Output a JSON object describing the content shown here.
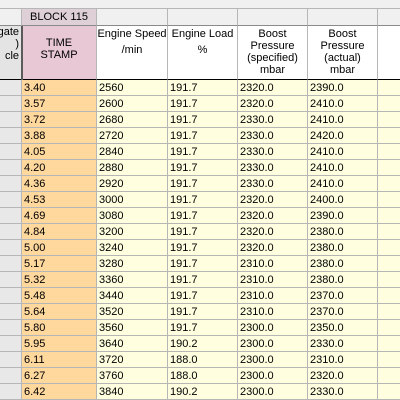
{
  "block_label": "BLOCK 115",
  "left_header": [
    "gate",
    ")",
    "cle"
  ],
  "columns": [
    {
      "lines": [
        "TIME",
        "STAMP"
      ]
    },
    {
      "lines": [
        "Engine Speed",
        "",
        "/min"
      ]
    },
    {
      "lines": [
        "Engine Load",
        "",
        "%"
      ]
    },
    {
      "lines": [
        "Boost",
        "Pressure",
        "(specified)",
        "mbar"
      ]
    },
    {
      "lines": [
        "Boost",
        "Pressure",
        "(actual)",
        "mbar"
      ]
    }
  ],
  "rows": [
    [
      "3.40",
      "2560",
      "191.7",
      "2320.0",
      "2390.0"
    ],
    [
      "3.57",
      "2600",
      "191.7",
      "2320.0",
      "2410.0"
    ],
    [
      "3.72",
      "2680",
      "191.7",
      "2330.0",
      "2410.0"
    ],
    [
      "3.88",
      "2720",
      "191.7",
      "2330.0",
      "2420.0"
    ],
    [
      "4.05",
      "2840",
      "191.7",
      "2330.0",
      "2410.0"
    ],
    [
      "4.20",
      "2880",
      "191.7",
      "2330.0",
      "2410.0"
    ],
    [
      "4.36",
      "2920",
      "191.7",
      "2330.0",
      "2410.0"
    ],
    [
      "4.53",
      "3000",
      "191.7",
      "2320.0",
      "2400.0"
    ],
    [
      "4.69",
      "3080",
      "191.7",
      "2320.0",
      "2390.0"
    ],
    [
      "4.84",
      "3200",
      "191.7",
      "2320.0",
      "2380.0"
    ],
    [
      "5.00",
      "3240",
      "191.7",
      "2320.0",
      "2380.0"
    ],
    [
      "5.17",
      "3280",
      "191.7",
      "2310.0",
      "2380.0"
    ],
    [
      "5.32",
      "3360",
      "191.7",
      "2310.0",
      "2380.0"
    ],
    [
      "5.48",
      "3440",
      "191.7",
      "2310.0",
      "2370.0"
    ],
    [
      "5.64",
      "3520",
      "191.7",
      "2310.0",
      "2370.0"
    ],
    [
      "5.80",
      "3560",
      "191.7",
      "2300.0",
      "2350.0"
    ],
    [
      "5.95",
      "3640",
      "190.2",
      "2300.0",
      "2330.0"
    ],
    [
      "6.11",
      "3720",
      "188.0",
      "2300.0",
      "2310.0"
    ],
    [
      "6.27",
      "3760",
      "188.0",
      "2300.0",
      "2320.0"
    ],
    [
      "6.42",
      "3840",
      "190.2",
      "2300.0",
      "2330.0"
    ]
  ],
  "colors": {
    "timestamp_header": "#e8c8d4",
    "timestamp_cells": "#ffd89e",
    "data_cells": "#ffffe0"
  }
}
